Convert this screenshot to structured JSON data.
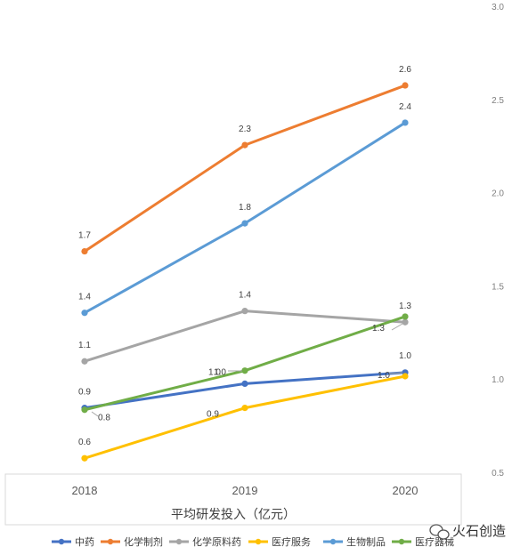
{
  "chart_data": {
    "type": "line",
    "title": "",
    "xlabel": "平均研发投入（亿元）",
    "ylabel": "",
    "x": [
      "2018",
      "2019",
      "2020"
    ],
    "ylim": [
      0.5,
      3.0
    ],
    "y_ticks": [
      "0.5",
      "1.0",
      "1.5",
      "2.0",
      "2.5",
      "3.0"
    ],
    "y_axis_side": "right",
    "grid": false,
    "legend_position": "bottom",
    "series": [
      {
        "name": "中药",
        "color": "#4472C4",
        "values": [
          0.85,
          0.98,
          1.04
        ],
        "labels": [
          "0.9",
          "1.0",
          "1.0"
        ]
      },
      {
        "name": "化学制剂",
        "color": "#ED7D31",
        "values": [
          1.69,
          2.26,
          2.58
        ],
        "labels": [
          "1.7",
          "2.3",
          "2.6"
        ]
      },
      {
        "name": "化学原料药",
        "color": "#A5A5A5",
        "values": [
          1.1,
          1.37,
          1.31
        ],
        "labels": [
          "1.1",
          "1.4",
          "1.3"
        ]
      },
      {
        "name": "医疗服务",
        "color": "#FFC000",
        "values": [
          0.58,
          0.85,
          1.02
        ],
        "labels": [
          "0.6",
          "0.9",
          "1.0"
        ]
      },
      {
        "name": "生物制品",
        "color": "#5B9BD5",
        "values": [
          1.36,
          1.84,
          2.38
        ],
        "labels": [
          "1.4",
          "1.8",
          "2.4"
        ]
      },
      {
        "name": "医疗器械",
        "color": "#70AD47",
        "values": [
          0.84,
          1.05,
          1.34
        ],
        "labels": [
          "0.8",
          "1.0",
          "1.3"
        ]
      }
    ]
  },
  "watermark": {
    "text": "火石创造",
    "icon": "wechat-icon"
  }
}
